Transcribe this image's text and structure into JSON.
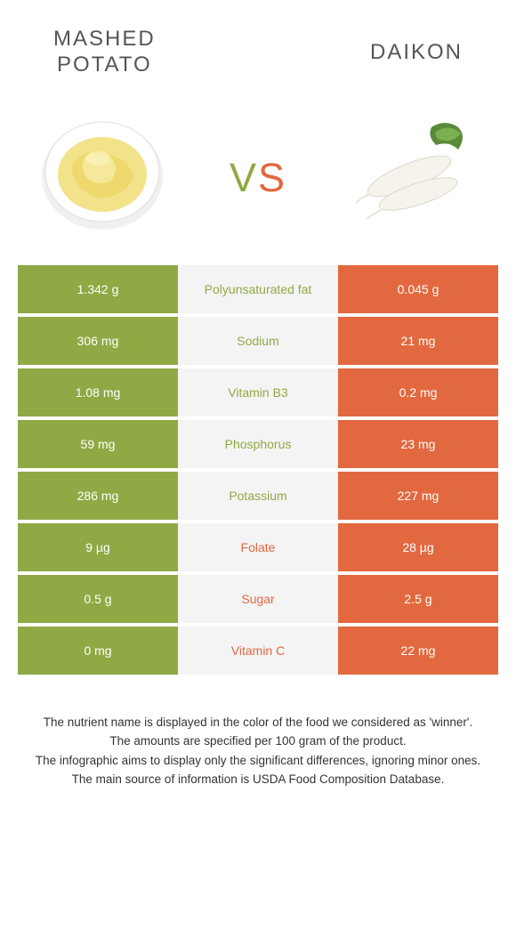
{
  "colors": {
    "left": "#8fa944",
    "right": "#e2683f",
    "mid_bg": "#f4f4f4"
  },
  "header": {
    "left_line1": "Mashed",
    "left_line2": "potato",
    "right": "Daikon"
  },
  "vs": {
    "v": "v",
    "s": "s"
  },
  "rows": [
    {
      "left": "1.342 g",
      "label": "Polyunsaturated fat",
      "right": "0.045 g",
      "winner": "left"
    },
    {
      "left": "306 mg",
      "label": "Sodium",
      "right": "21 mg",
      "winner": "left"
    },
    {
      "left": "1.08 mg",
      "label": "Vitamin B3",
      "right": "0.2 mg",
      "winner": "left"
    },
    {
      "left": "59 mg",
      "label": "Phosphorus",
      "right": "23 mg",
      "winner": "left"
    },
    {
      "left": "286 mg",
      "label": "Potassium",
      "right": "227 mg",
      "winner": "left"
    },
    {
      "left": "9 µg",
      "label": "Folate",
      "right": "28 µg",
      "winner": "right"
    },
    {
      "left": "0.5 g",
      "label": "Sugar",
      "right": "2.5 g",
      "winner": "right"
    },
    {
      "left": "0 mg",
      "label": "Vitamin C",
      "right": "22 mg",
      "winner": "right"
    }
  ],
  "footnotes": [
    "The nutrient name is displayed in the color of the food we considered as 'winner'.",
    "The amounts are specified per 100 gram of the product.",
    "The infographic aims to display only the significant differences, ignoring minor ones.",
    "The main source of information is USDA Food Composition Database."
  ]
}
